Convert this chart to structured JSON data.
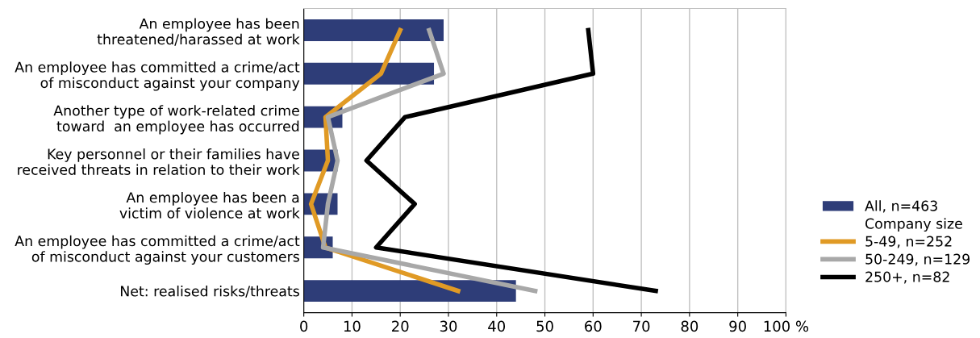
{
  "chart_data": {
    "type": "bar",
    "orientation": "horizontal",
    "categories": [
      "An employee has been\nthreatened/harassed at work",
      "An employee has committed a crime/act\nof misconduct against your company",
      "Another type of work-related crime\ntoward  an employee has occurred",
      "Key personnel or their families have\nreceived threats in relation to their work",
      "An employee has been a\nvictim of violence at work",
      "An employee has committed a crime/act\nof misconduct against your customers",
      "Net: realised risks/threats"
    ],
    "series": [
      {
        "name": "All, n=463",
        "color": "#2e3d78",
        "values": [
          29,
          27,
          8,
          7,
          7,
          6,
          44
        ]
      },
      {
        "name": "5-49, n=252",
        "type": "line",
        "color": "#e09a25",
        "values": [
          20,
          16,
          4.5,
          5,
          1.5,
          4.5,
          32
        ]
      },
      {
        "name": "50-249, n=129",
        "type": "line",
        "color": "#a8a8a8",
        "values": [
          26,
          29,
          5,
          7,
          5,
          4,
          48
        ]
      },
      {
        "name": "250+, n=82",
        "type": "line",
        "color": "#000000",
        "values": [
          59,
          60,
          21,
          13,
          23,
          15,
          73
        ]
      }
    ],
    "legend_title": "Company size",
    "xlim": [
      0,
      100
    ],
    "xticks": [
      0,
      10,
      20,
      30,
      40,
      50,
      60,
      70,
      80,
      90,
      {
        "value": 100,
        "label": "100 %"
      }
    ],
    "grid": "x",
    "legend": "right",
    "marker": "none",
    "line_style": "solid"
  }
}
